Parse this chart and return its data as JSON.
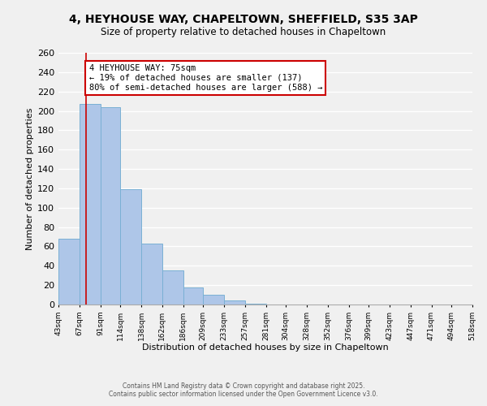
{
  "title_line1": "4, HEYHOUSE WAY, CHAPELTOWN, SHEFFIELD, S35 3AP",
  "title_line2": "Size of property relative to detached houses in Chapeltown",
  "xlabel": "Distribution of detached houses by size in Chapeltown",
  "ylabel": "Number of detached properties",
  "bar_edges": [
    43,
    67,
    91,
    114,
    138,
    162,
    186,
    209,
    233,
    257,
    281,
    304,
    328,
    352,
    376,
    399,
    423,
    447,
    471,
    494,
    518
  ],
  "bar_heights": [
    68,
    207,
    204,
    119,
    63,
    35,
    18,
    10,
    4,
    1,
    0,
    0,
    0,
    0,
    0,
    0,
    0,
    0,
    0,
    0
  ],
  "bar_color": "#aec6e8",
  "bar_edge_color": "#7ab0d4",
  "property_line_x": 75,
  "property_line_color": "#cc0000",
  "ylim": [
    0,
    260
  ],
  "yticks": [
    0,
    20,
    40,
    60,
    80,
    100,
    120,
    140,
    160,
    180,
    200,
    220,
    240,
    260
  ],
  "annotation_box_text_line1": "4 HEYHOUSE WAY: 75sqm",
  "annotation_box_text_line2": "← 19% of detached houses are smaller (137)",
  "annotation_box_text_line3": "80% of semi-detached houses are larger (588) →",
  "footer_line1": "Contains HM Land Registry data © Crown copyright and database right 2025.",
  "footer_line2": "Contains public sector information licensed under the Open Government Licence v3.0.",
  "tick_labels": [
    "43sqm",
    "67sqm",
    "91sqm",
    "114sqm",
    "138sqm",
    "162sqm",
    "186sqm",
    "209sqm",
    "233sqm",
    "257sqm",
    "281sqm",
    "304sqm",
    "328sqm",
    "352sqm",
    "376sqm",
    "399sqm",
    "423sqm",
    "447sqm",
    "471sqm",
    "494sqm",
    "518sqm"
  ],
  "background_color": "#f0f0f0",
  "grid_color": "#ffffff",
  "annotation_box_edge_color": "#cc0000",
  "title_fontsize": 10,
  "subtitle_fontsize": 8.5,
  "ylabel_fontsize": 8,
  "xlabel_fontsize": 8,
  "tick_fontsize": 6.5,
  "ytick_fontsize": 8,
  "footer_fontsize": 5.5,
  "annot_fontsize": 7.5
}
